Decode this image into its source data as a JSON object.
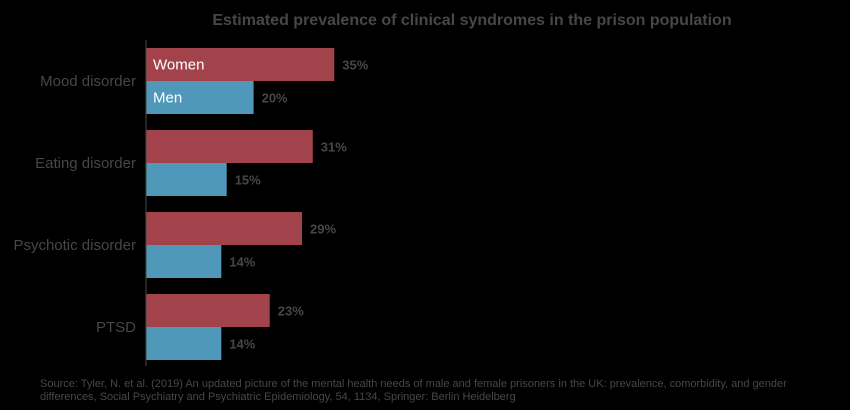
{
  "chart_data": {
    "type": "bar",
    "orientation": "horizontal",
    "title": "Estimated prevalence of clinical syndromes in the prison population",
    "categories": [
      "Mood disorder",
      "Eating disorder",
      "Psychotic disorder",
      "PTSD"
    ],
    "series": [
      {
        "name": "Women",
        "color": "#a2424b",
        "values": [
          35,
          31,
          29,
          23
        ],
        "labels": [
          "35%",
          "31%",
          "29%",
          "23%"
        ]
      },
      {
        "name": "Men",
        "color": "#4f98b9",
        "values": [
          20,
          15,
          14,
          14
        ],
        "labels": [
          "20%",
          "15%",
          "14%",
          "14%"
        ]
      }
    ],
    "value_unit": "%",
    "xlim": [
      0,
      100
    ],
    "grid": false,
    "legend": "inside-first-bars"
  },
  "source_note": "Source: Tyler, N. et al. (2019) An updated picture of the mental health needs of male and female prisoners in the UK: prevalence, comorbidity, and gender differences, Social Psychiatry and Psychiatric Epidemiology, 54, 1134, Springer: Berlin Heidelberg",
  "colors": {
    "background": "#000000",
    "text": "#474747",
    "axis": "#474747"
  }
}
